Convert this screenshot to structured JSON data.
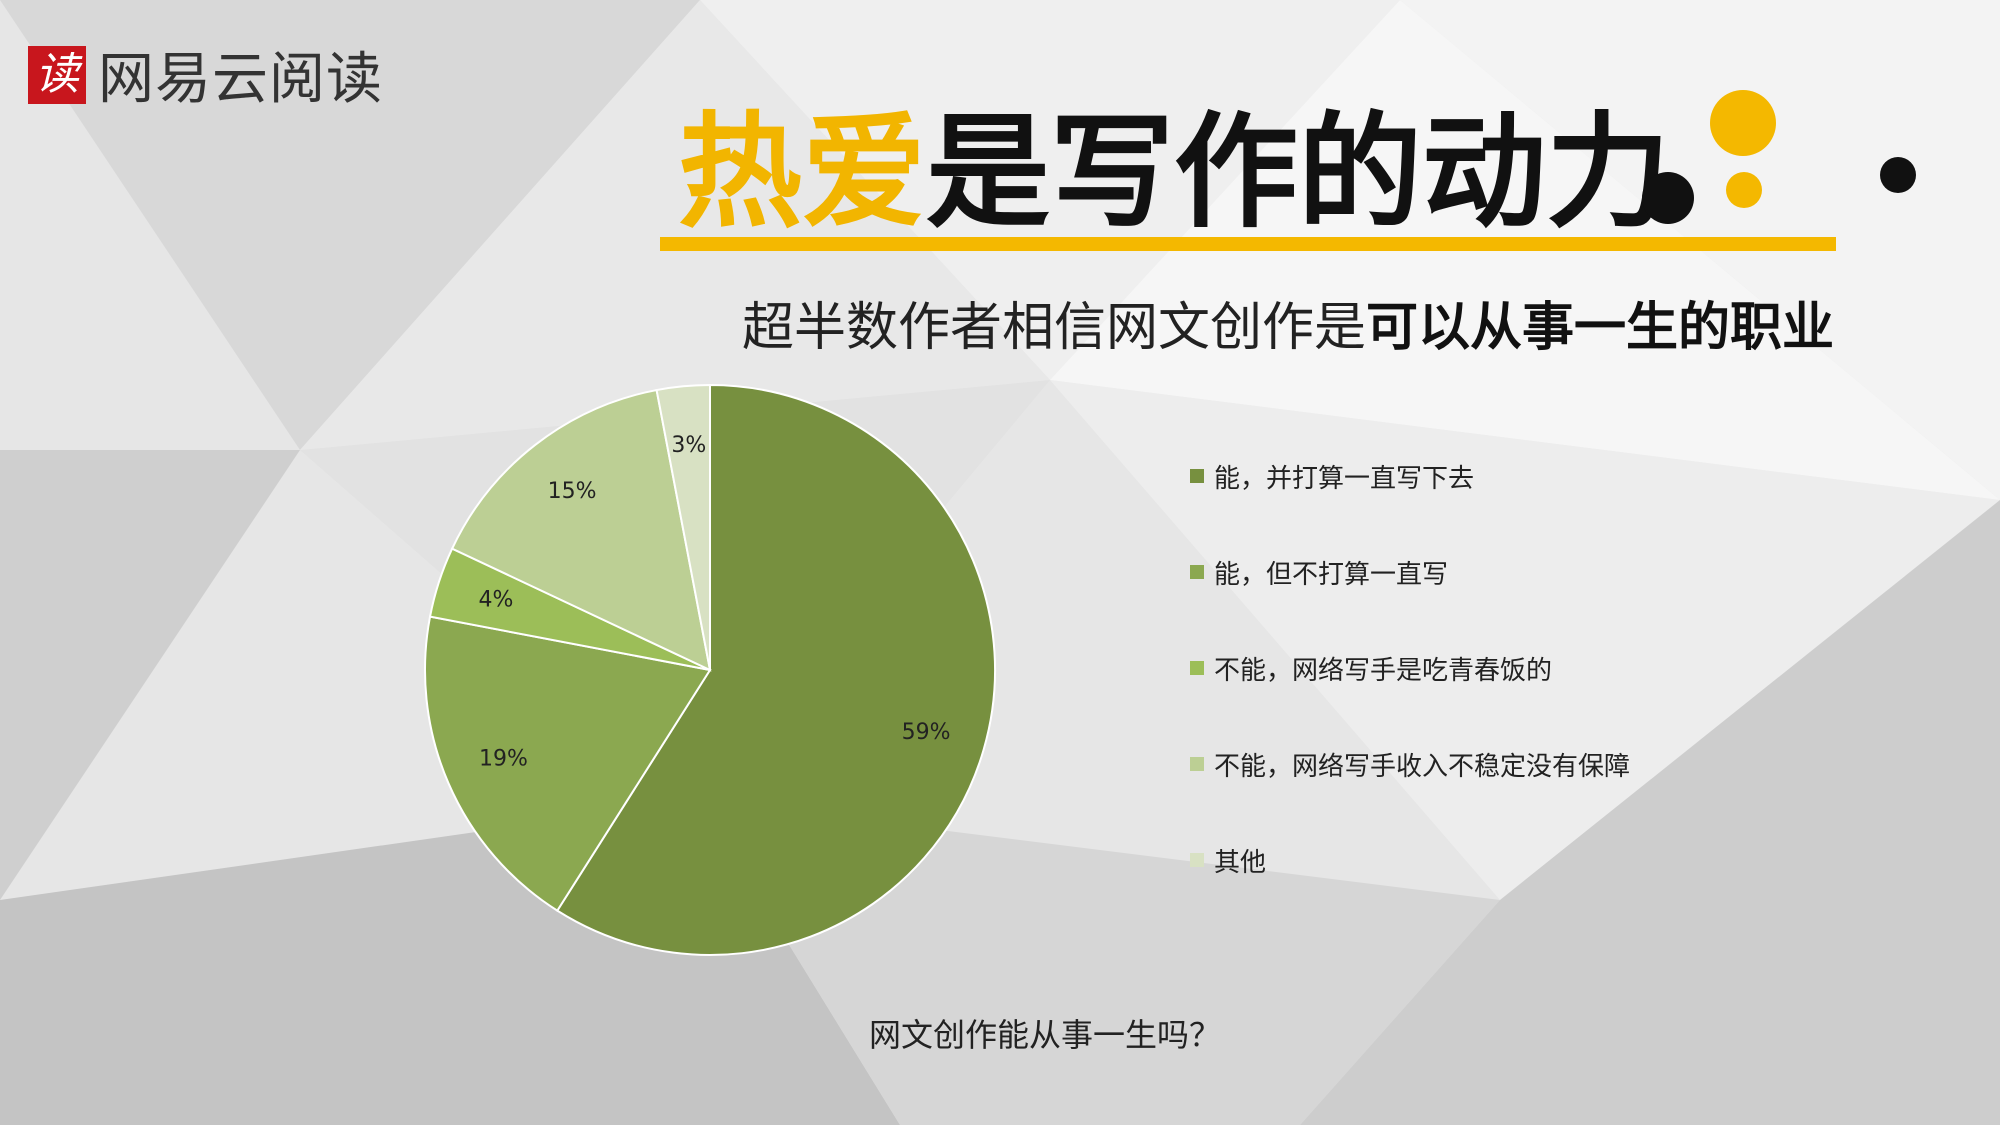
{
  "logo": {
    "badge": "读",
    "text": "网易云阅读"
  },
  "headline": {
    "highlight": "热爱",
    "rest": "是写作的动力"
  },
  "subtitle": {
    "normal": "超半数作者相信网文创作是",
    "bold": "可以从事一生的职业"
  },
  "colors": {
    "accent": "#f4b800",
    "dark": "#111111"
  },
  "chart_data": {
    "type": "pie",
    "xlabel": "网文创作能从事一生吗？",
    "start_angle_deg": 0,
    "direction": "clockwise",
    "series": [
      {
        "label": "能，并打算一直写下去",
        "value": 59,
        "display": "59%",
        "color": "#77903f"
      },
      {
        "label": "能，但不打算一直写",
        "value": 19,
        "display": "19%",
        "color": "#8ba850"
      },
      {
        "label": "不能，网络写手是吃青春饭的",
        "value": 4,
        "display": "4%",
        "color": "#9cbe58"
      },
      {
        "label": "不能，网络写手收入不稳定没有保障",
        "value": 15,
        "display": "15%",
        "color": "#bccf94"
      },
      {
        "label": "其他",
        "value": 3,
        "display": "3%",
        "color": "#d8e1c3"
      }
    ],
    "legend_position": "right"
  }
}
